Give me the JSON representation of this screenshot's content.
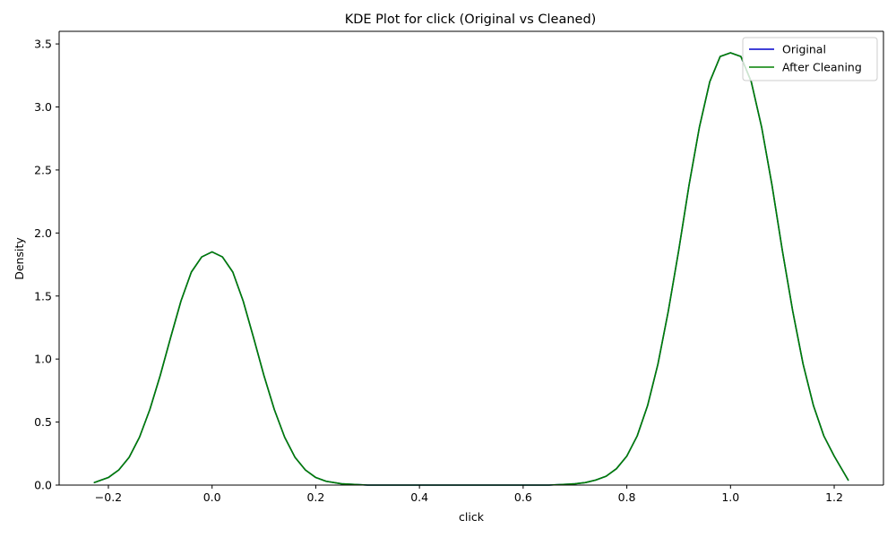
{
  "chart_data": {
    "type": "line",
    "title": "KDE Plot for click (Original vs Cleaned)",
    "xlabel": "click",
    "ylabel": "Density",
    "xlim": [
      -0.295,
      1.295
    ],
    "ylim": [
      0,
      3.6
    ],
    "xticks": [
      -0.2,
      0.0,
      0.2,
      0.4,
      0.6,
      0.8,
      1.0,
      1.2
    ],
    "xtick_labels": [
      "−0.2",
      "0.0",
      "0.2",
      "0.4",
      "0.6",
      "0.8",
      "1.0",
      "1.2"
    ],
    "yticks": [
      0.0,
      0.5,
      1.0,
      1.5,
      2.0,
      2.5,
      3.0,
      3.5
    ],
    "ytick_labels": [
      "0.0",
      "0.5",
      "1.0",
      "1.5",
      "2.0",
      "2.5",
      "3.0",
      "3.5"
    ],
    "grid": false,
    "legend": "top-right",
    "series": [
      {
        "name": "Original",
        "color": "#0000cc",
        "x": [
          -0.227,
          -0.2,
          -0.18,
          -0.16,
          -0.14,
          -0.12,
          -0.1,
          -0.08,
          -0.06,
          -0.04,
          -0.02,
          0.0,
          0.02,
          0.04,
          0.06,
          0.08,
          0.1,
          0.12,
          0.14,
          0.16,
          0.18,
          0.2,
          0.22,
          0.25,
          0.3,
          0.35,
          0.4,
          0.5,
          0.6,
          0.65,
          0.7,
          0.72,
          0.74,
          0.76,
          0.78,
          0.8,
          0.82,
          0.84,
          0.86,
          0.88,
          0.9,
          0.92,
          0.94,
          0.96,
          0.98,
          1.0,
          1.02,
          1.04,
          1.06,
          1.08,
          1.1,
          1.12,
          1.14,
          1.16,
          1.18,
          1.2,
          1.227
        ],
        "y": [
          0.02,
          0.06,
          0.12,
          0.22,
          0.38,
          0.6,
          0.87,
          1.17,
          1.46,
          1.69,
          1.81,
          1.85,
          1.81,
          1.69,
          1.46,
          1.17,
          0.87,
          0.6,
          0.38,
          0.22,
          0.12,
          0.06,
          0.03,
          0.01,
          0.0,
          0.0,
          0.0,
          0.0,
          0.0,
          0.0,
          0.01,
          0.02,
          0.04,
          0.07,
          0.13,
          0.23,
          0.39,
          0.63,
          0.96,
          1.38,
          1.86,
          2.38,
          2.84,
          3.2,
          3.4,
          3.43,
          3.4,
          3.2,
          2.84,
          2.38,
          1.86,
          1.38,
          0.96,
          0.63,
          0.39,
          0.23,
          0.04
        ]
      },
      {
        "name": "After Cleaning",
        "color": "#008000",
        "x": [
          -0.227,
          -0.2,
          -0.18,
          -0.16,
          -0.14,
          -0.12,
          -0.1,
          -0.08,
          -0.06,
          -0.04,
          -0.02,
          0.0,
          0.02,
          0.04,
          0.06,
          0.08,
          0.1,
          0.12,
          0.14,
          0.16,
          0.18,
          0.2,
          0.22,
          0.25,
          0.3,
          0.35,
          0.4,
          0.5,
          0.6,
          0.65,
          0.7,
          0.72,
          0.74,
          0.76,
          0.78,
          0.8,
          0.82,
          0.84,
          0.86,
          0.88,
          0.9,
          0.92,
          0.94,
          0.96,
          0.98,
          1.0,
          1.02,
          1.04,
          1.06,
          1.08,
          1.1,
          1.12,
          1.14,
          1.16,
          1.18,
          1.2,
          1.227
        ],
        "y": [
          0.02,
          0.06,
          0.12,
          0.22,
          0.38,
          0.6,
          0.87,
          1.17,
          1.46,
          1.69,
          1.81,
          1.85,
          1.81,
          1.69,
          1.46,
          1.17,
          0.87,
          0.6,
          0.38,
          0.22,
          0.12,
          0.06,
          0.03,
          0.01,
          0.0,
          0.0,
          0.0,
          0.0,
          0.0,
          0.0,
          0.01,
          0.02,
          0.04,
          0.07,
          0.13,
          0.23,
          0.39,
          0.63,
          0.96,
          1.38,
          1.86,
          2.38,
          2.84,
          3.2,
          3.4,
          3.43,
          3.4,
          3.2,
          2.84,
          2.38,
          1.86,
          1.38,
          0.96,
          0.63,
          0.39,
          0.23,
          0.04
        ]
      }
    ]
  }
}
